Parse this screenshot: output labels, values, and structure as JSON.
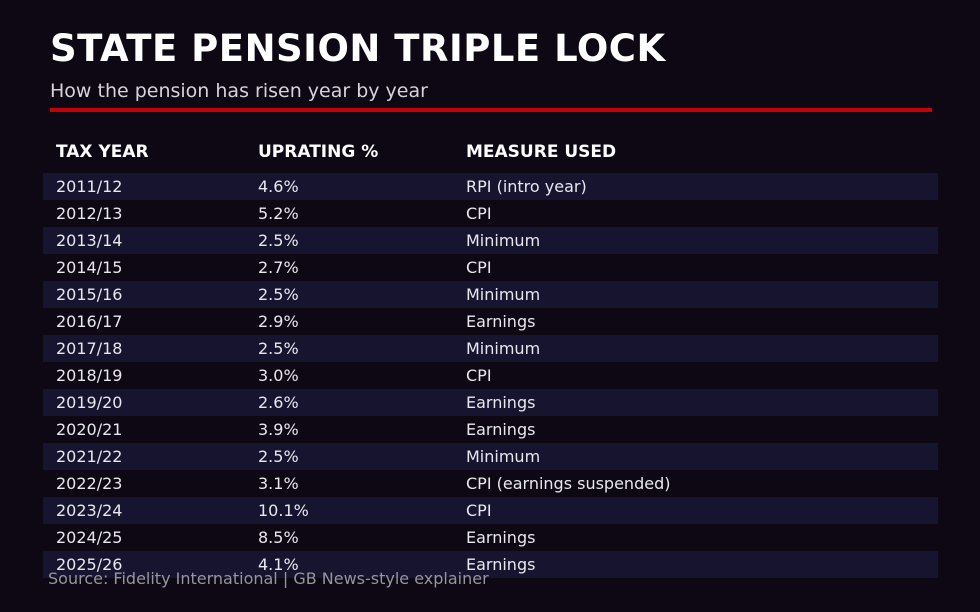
{
  "colors": {
    "background": "#0d0814",
    "row_stripe": "#171430",
    "accent_red": "#c40008",
    "title_text": "#ffffff",
    "body_text": "#e9e7ee",
    "muted_text": "#98959e"
  },
  "chart_data": {
    "type": "table",
    "title": "STATE PENSION TRIPLE LOCK",
    "subtitle": "How the pension has risen year by year",
    "columns": [
      "TAX YEAR",
      "UPRATING %",
      "MEASURE USED"
    ],
    "rows": [
      {
        "tax_year": "2011/12",
        "uprating_pct": 4.6,
        "uprating_label": "4.6%",
        "measure": "RPI (intro year)"
      },
      {
        "tax_year": "2012/13",
        "uprating_pct": 5.2,
        "uprating_label": "5.2%",
        "measure": "CPI"
      },
      {
        "tax_year": "2013/14",
        "uprating_pct": 2.5,
        "uprating_label": "2.5%",
        "measure": "Minimum"
      },
      {
        "tax_year": "2014/15",
        "uprating_pct": 2.7,
        "uprating_label": "2.7%",
        "measure": "CPI"
      },
      {
        "tax_year": "2015/16",
        "uprating_pct": 2.5,
        "uprating_label": "2.5%",
        "measure": "Minimum"
      },
      {
        "tax_year": "2016/17",
        "uprating_pct": 2.9,
        "uprating_label": "2.9%",
        "measure": "Earnings"
      },
      {
        "tax_year": "2017/18",
        "uprating_pct": 2.5,
        "uprating_label": "2.5%",
        "measure": "Minimum"
      },
      {
        "tax_year": "2018/19",
        "uprating_pct": 3.0,
        "uprating_label": "3.0%",
        "measure": "CPI"
      },
      {
        "tax_year": "2019/20",
        "uprating_pct": 2.6,
        "uprating_label": "2.6%",
        "measure": "Earnings"
      },
      {
        "tax_year": "2020/21",
        "uprating_pct": 3.9,
        "uprating_label": "3.9%",
        "measure": "Earnings"
      },
      {
        "tax_year": "2021/22",
        "uprating_pct": 2.5,
        "uprating_label": "2.5%",
        "measure": "Minimum"
      },
      {
        "tax_year": "2022/23",
        "uprating_pct": 3.1,
        "uprating_label": "3.1%",
        "measure": "CPI (earnings suspended)"
      },
      {
        "tax_year": "2023/24",
        "uprating_pct": 10.1,
        "uprating_label": "10.1%",
        "measure": "CPI"
      },
      {
        "tax_year": "2024/25",
        "uprating_pct": 8.5,
        "uprating_label": "8.5%",
        "measure": "Earnings"
      },
      {
        "tax_year": "2025/26",
        "uprating_pct": 4.1,
        "uprating_label": "4.1%",
        "measure": "Earnings"
      }
    ],
    "source": "Source: Fidelity International | GB News-style explainer",
    "layout": {
      "striped_rows": "odd",
      "grid": false,
      "legend": false
    }
  }
}
